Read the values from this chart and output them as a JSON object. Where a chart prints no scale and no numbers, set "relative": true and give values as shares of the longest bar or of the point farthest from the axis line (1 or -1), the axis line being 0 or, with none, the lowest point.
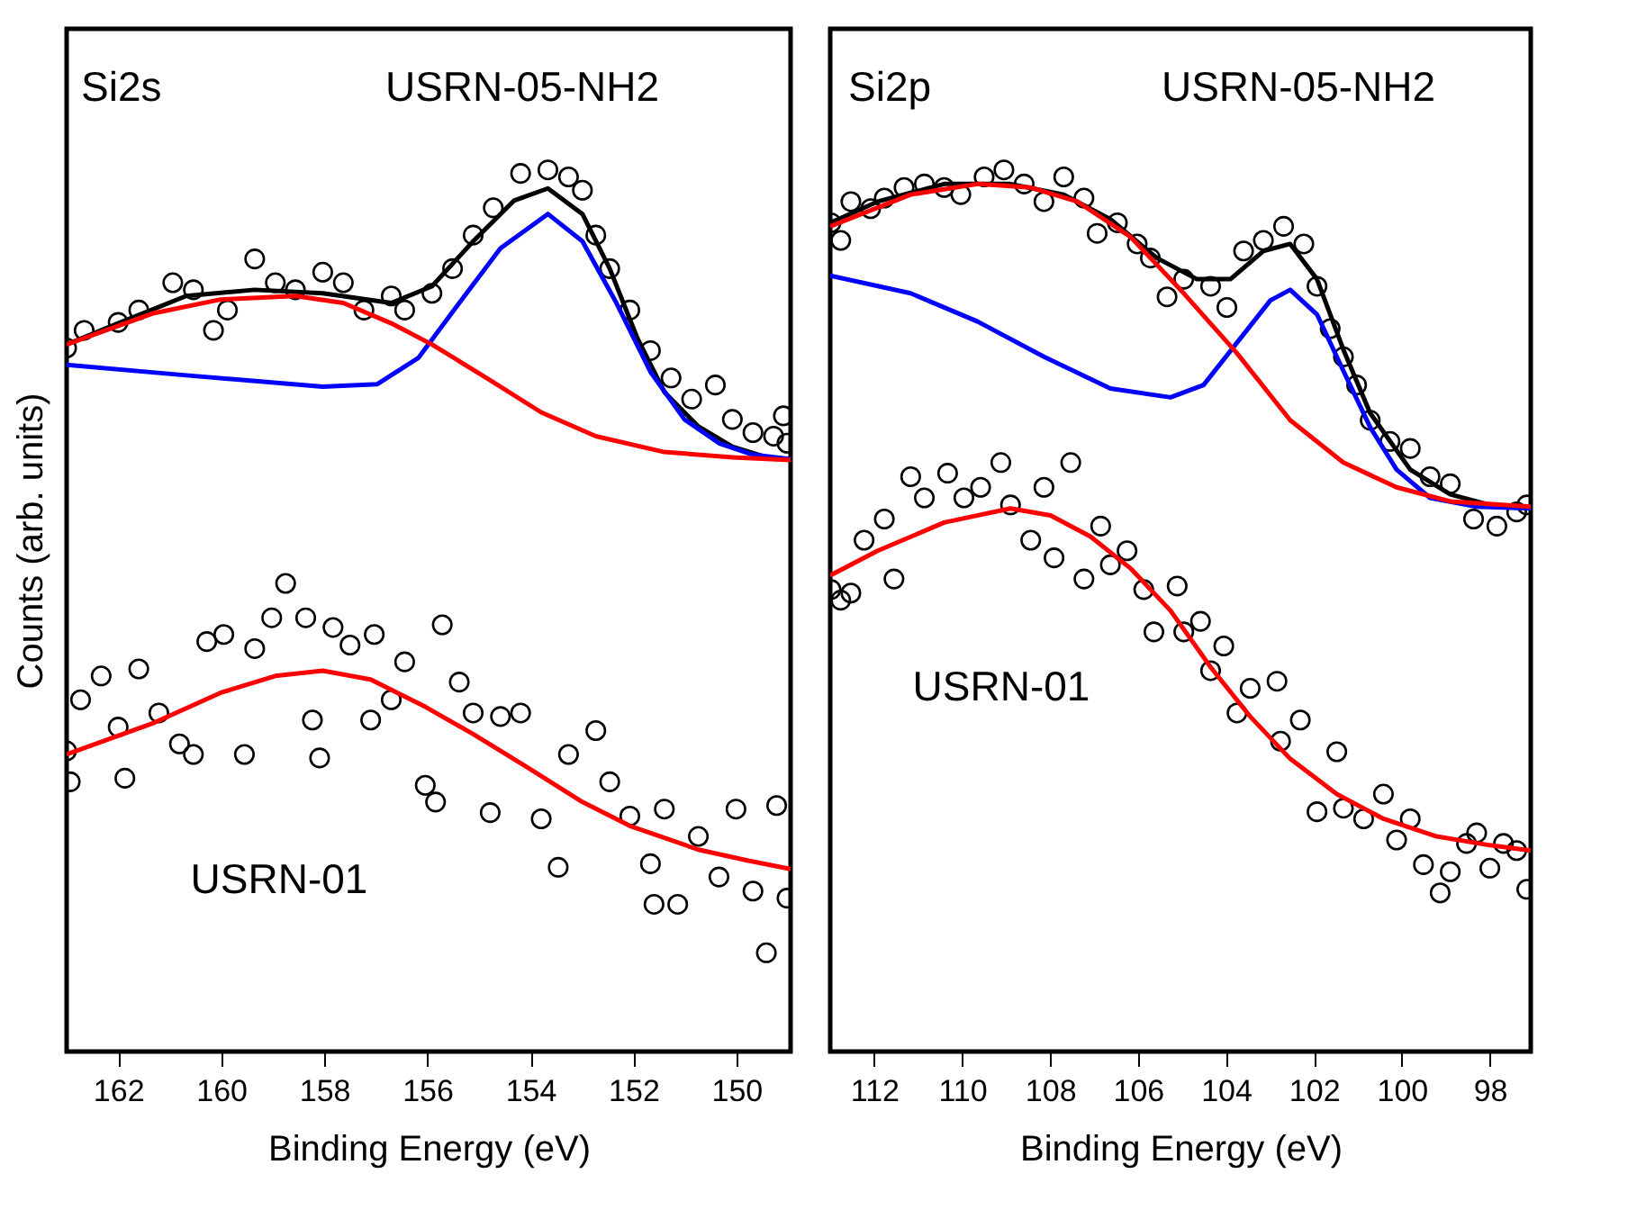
{
  "chart_data": [
    {
      "type": "scatter",
      "title": "Si2s",
      "xlabel": "Binding Energy (eV)",
      "ylabel": "Counts (arb. units)",
      "relative": true,
      "tick_labels": "x",
      "marker": "circle",
      "xlim": [
        163.0,
        148.95
      ],
      "xticks": [
        162,
        160,
        158,
        156,
        154,
        152,
        150
      ],
      "series": [
        {
          "name": "USRN-05-NH2",
          "color": "#000000",
          "x": [
            163.0,
            162.66,
            162.0,
            161.6,
            160.94,
            160.54,
            160.15,
            159.88,
            159.35,
            158.95,
            158.56,
            158.03,
            157.63,
            157.23,
            156.7,
            156.44,
            155.91,
            155.51,
            155.11,
            154.72,
            154.19,
            153.66,
            153.26,
            152.99,
            152.73,
            152.46,
            152.07,
            151.67,
            151.27,
            150.87,
            150.41,
            150.08,
            149.68,
            149.28,
            149.09,
            149.02
          ],
          "values": [
            0.798,
            0.818,
            0.827,
            0.841,
            0.872,
            0.864,
            0.818,
            0.841,
            0.899,
            0.872,
            0.864,
            0.884,
            0.872,
            0.841,
            0.857,
            0.841,
            0.86,
            0.888,
            0.926,
            0.957,
            0.996,
            1.0,
            0.992,
            0.977,
            0.926,
            0.888,
            0.841,
            0.795,
            0.764,
            0.74,
            0.756,
            0.717,
            0.702,
            0.698,
            0.721,
            0.69
          ]
        },
        {
          "type": "line",
          "marker": "none",
          "color": "#000000",
          "x": [
            163.0,
            162.0,
            160.68,
            159.35,
            158.03,
            156.7,
            155.91,
            155.11,
            154.32,
            153.66,
            152.99,
            152.46,
            151.93,
            151.4,
            150.74,
            150.08,
            149.42,
            148.95
          ],
          "values": [
            0.802,
            0.826,
            0.857,
            0.864,
            0.86,
            0.849,
            0.868,
            0.919,
            0.965,
            0.979,
            0.95,
            0.888,
            0.81,
            0.748,
            0.709,
            0.686,
            0.674,
            0.672
          ]
        },
        {
          "type": "line",
          "marker": "none",
          "color": "#0000ff",
          "x": [
            163.0,
            160.68,
            158.03,
            156.97,
            156.17,
            155.38,
            154.58,
            153.66,
            152.99,
            152.33,
            151.67,
            151.01,
            150.34,
            149.68,
            148.95
          ],
          "values": [
            0.779,
            0.767,
            0.754,
            0.757,
            0.787,
            0.849,
            0.911,
            0.95,
            0.919,
            0.849,
            0.771,
            0.717,
            0.69,
            0.677,
            0.672
          ]
        },
        {
          "type": "line",
          "marker": "none",
          "color": "#ff0000",
          "x": [
            163.0,
            161.34,
            160.01,
            158.56,
            157.63,
            156.7,
            155.91,
            154.85,
            153.79,
            152.73,
            151.4,
            150.08,
            148.95
          ],
          "values": [
            0.802,
            0.837,
            0.853,
            0.857,
            0.849,
            0.826,
            0.802,
            0.764,
            0.725,
            0.698,
            0.68,
            0.674,
            0.671
          ]
        },
        {
          "name": "USRN-01",
          "color": "#000000",
          "x": [
            163.0,
            162.93,
            162.73,
            162.33,
            162.0,
            161.87,
            161.6,
            161.21,
            160.81,
            160.54,
            160.28,
            159.95,
            159.55,
            159.35,
            159.02,
            158.75,
            158.36,
            158.23,
            158.09,
            157.83,
            157.5,
            157.1,
            157.03,
            156.7,
            156.44,
            156.04,
            155.84,
            155.71,
            155.38,
            155.11,
            154.78,
            154.58,
            154.19,
            153.79,
            153.46,
            153.26,
            152.73,
            152.46,
            152.07,
            151.67,
            151.6,
            151.4,
            151.14,
            150.74,
            150.34,
            150.01,
            149.68,
            149.42,
            149.22,
            149.02
          ],
          "values": [
            0.341,
            0.306,
            0.399,
            0.426,
            0.368,
            0.31,
            0.434,
            0.384,
            0.349,
            0.337,
            0.465,
            0.473,
            0.337,
            0.457,
            0.492,
            0.531,
            0.492,
            0.376,
            0.333,
            0.481,
            0.461,
            0.376,
            0.473,
            0.399,
            0.442,
            0.302,
            0.283,
            0.484,
            0.419,
            0.384,
            0.271,
            0.38,
            0.384,
            0.264,
            0.209,
            0.337,
            0.364,
            0.306,
            0.267,
            0.213,
            0.167,
            0.275,
            0.167,
            0.244,
            0.198,
            0.275,
            0.182,
            0.112,
            0.279,
            0.174
          ]
        },
        {
          "type": "line",
          "marker": "none",
          "color": "#ff0000",
          "x": [
            163.0,
            161.34,
            160.01,
            158.95,
            158.03,
            157.1,
            156.04,
            155.11,
            154.05,
            152.99,
            152.07,
            150.74,
            149.81,
            148.95
          ],
          "values": [
            0.337,
            0.372,
            0.407,
            0.426,
            0.432,
            0.422,
            0.391,
            0.36,
            0.322,
            0.283,
            0.256,
            0.229,
            0.217,
            0.207
          ]
        }
      ]
    },
    {
      "type": "scatter",
      "title": "Si2p",
      "xlabel": "Binding Energy (eV)",
      "relative": true,
      "tick_labels": "x",
      "marker": "circle",
      "xlim": [
        113.0,
        97.07
      ],
      "xticks": [
        112,
        110,
        108,
        106,
        104,
        102,
        100,
        98
      ],
      "series": [
        {
          "name": "USRN-05-NH2",
          "color": "#000000",
          "x": [
            112.98,
            112.76,
            112.53,
            112.08,
            111.77,
            111.32,
            110.86,
            110.41,
            110.03,
            109.5,
            109.05,
            108.59,
            108.14,
            107.69,
            107.23,
            106.93,
            106.47,
            106.02,
            105.72,
            105.34,
            104.96,
            104.35,
            103.98,
            103.6,
            103.15,
            102.69,
            102.23,
            101.93,
            101.63,
            101.33,
            101.03,
            100.72,
            100.27,
            99.81,
            99.36,
            98.9,
            98.37,
            97.84,
            97.39,
            97.16
          ],
          "values": [
            0.94,
            0.92,
            0.964,
            0.956,
            0.968,
            0.98,
            0.984,
            0.98,
            0.972,
            0.992,
            1.0,
            0.984,
            0.964,
            0.992,
            0.968,
            0.928,
            0.94,
            0.916,
            0.9,
            0.856,
            0.876,
            0.868,
            0.844,
            0.908,
            0.92,
            0.936,
            0.916,
            0.868,
            0.82,
            0.788,
            0.756,
            0.716,
            0.692,
            0.684,
            0.652,
            0.644,
            0.604,
            0.596,
            0.612,
            0.62
          ]
        },
        {
          "type": "line",
          "marker": "none",
          "color": "#000000",
          "x": [
            113.0,
            111.92,
            110.41,
            108.9,
            107.69,
            106.63,
            105.57,
            104.66,
            103.9,
            103.15,
            102.54,
            101.93,
            101.33,
            100.72,
            99.81,
            98.9,
            98.0,
            97.07
          ],
          "values": [
            0.94,
            0.964,
            0.984,
            0.984,
            0.972,
            0.944,
            0.9,
            0.876,
            0.876,
            0.908,
            0.916,
            0.876,
            0.796,
            0.724,
            0.66,
            0.632,
            0.62,
            0.616
          ]
        },
        {
          "type": "line",
          "marker": "none",
          "color": "#0000ff",
          "x": [
            113.0,
            111.17,
            109.65,
            108.14,
            106.63,
            105.26,
            104.51,
            103.75,
            102.99,
            102.54,
            101.93,
            101.33,
            100.72,
            100.12,
            99.36,
            98.3,
            97.07
          ],
          "values": [
            0.88,
            0.86,
            0.828,
            0.788,
            0.752,
            0.742,
            0.756,
            0.804,
            0.852,
            0.864,
            0.836,
            0.772,
            0.708,
            0.66,
            0.628,
            0.618,
            0.616
          ]
        },
        {
          "type": "line",
          "marker": "none",
          "color": "#ff0000",
          "x": [
            113.0,
            111.17,
            109.65,
            108.44,
            107.38,
            106.17,
            104.96,
            103.75,
            102.54,
            101.33,
            100.12,
            98.9,
            97.07
          ],
          "values": [
            0.936,
            0.972,
            0.984,
            0.98,
            0.964,
            0.924,
            0.86,
            0.792,
            0.716,
            0.668,
            0.64,
            0.624,
            0.618
          ]
        },
        {
          "name": "USRN-01",
          "color": "#000000",
          "x": [
            112.98,
            112.76,
            112.53,
            112.23,
            111.77,
            111.55,
            111.17,
            110.86,
            110.33,
            109.96,
            109.58,
            109.12,
            108.9,
            108.44,
            108.14,
            107.91,
            107.53,
            107.23,
            106.85,
            106.63,
            106.25,
            105.87,
            105.64,
            105.11,
            104.96,
            104.58,
            104.35,
            104.05,
            103.75,
            103.45,
            102.84,
            102.76,
            102.31,
            101.93,
            101.48,
            101.33,
            100.87,
            100.42,
            100.12,
            99.81,
            99.51,
            99.13,
            98.9,
            98.53,
            98.3,
            98.0,
            97.69,
            97.39,
            97.16
          ],
          "values": [
            0.524,
            0.512,
            0.52,
            0.58,
            0.604,
            0.536,
            0.652,
            0.628,
            0.656,
            0.628,
            0.64,
            0.668,
            0.62,
            0.58,
            0.64,
            0.56,
            0.668,
            0.536,
            0.596,
            0.552,
            0.568,
            0.524,
            0.476,
            0.528,
            0.476,
            0.488,
            0.432,
            0.46,
            0.384,
            0.412,
            0.42,
            0.352,
            0.376,
            0.272,
            0.34,
            0.276,
            0.264,
            0.292,
            0.24,
            0.264,
            0.212,
            0.18,
            0.204,
            0.236,
            0.248,
            0.208,
            0.236,
            0.228,
            0.184
          ]
        },
        {
          "type": "line",
          "marker": "none",
          "color": "#ff0000",
          "x": [
            113.0,
            111.92,
            110.41,
            108.9,
            107.99,
            107.08,
            106.17,
            105.26,
            104.35,
            103.45,
            102.54,
            101.48,
            100.42,
            99.21,
            98.0,
            97.07
          ],
          "values": [
            0.54,
            0.568,
            0.6,
            0.616,
            0.608,
            0.584,
            0.548,
            0.5,
            0.436,
            0.38,
            0.332,
            0.292,
            0.264,
            0.244,
            0.234,
            0.228
          ]
        }
      ]
    }
  ]
}
